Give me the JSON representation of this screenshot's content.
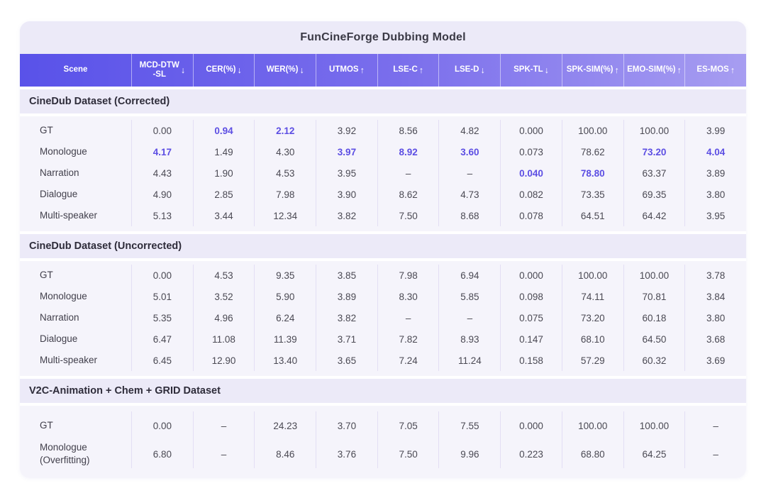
{
  "title": "FunCineForge Dubbing Model",
  "colors": {
    "accent_highlight": "#5C4EE3",
    "header_gradient_start": "#5952E9",
    "header_gradient_end": "#A79DF1",
    "card_background": "#ECEAF8",
    "data_background": "#F5F4FB"
  },
  "table": {
    "scene_header": "Scene",
    "columns": [
      {
        "label": "MCD-DTW\n-SL",
        "arrow": "↓",
        "better": "lower"
      },
      {
        "label": "CER(%)",
        "arrow": "↓",
        "better": "lower"
      },
      {
        "label": "WER(%)",
        "arrow": "↓",
        "better": "lower"
      },
      {
        "label": "UTMOS",
        "arrow": "↑",
        "better": "higher"
      },
      {
        "label": "LSE-C",
        "arrow": "↑",
        "better": "higher"
      },
      {
        "label": "LSE-D",
        "arrow": "↓",
        "better": "lower"
      },
      {
        "label": "SPK-TL",
        "arrow": "↓",
        "better": "lower"
      },
      {
        "label": "SPK-SIM(%)",
        "arrow": "↑",
        "better": "higher"
      },
      {
        "label": "EMO-SIM(%)",
        "arrow": "↑",
        "better": "higher"
      },
      {
        "label": "ES-MOS",
        "arrow": "↑",
        "better": "higher"
      }
    ],
    "sections": [
      {
        "title": "CineDub Dataset (Corrected)",
        "rows": [
          {
            "scene": "GT",
            "values": [
              "0.00",
              "0.94",
              "2.12",
              "3.92",
              "8.56",
              "4.82",
              "0.000",
              "100.00",
              "100.00",
              "3.99"
            ],
            "highlight": [
              1,
              2
            ]
          },
          {
            "scene": "Monologue",
            "values": [
              "4.17",
              "1.49",
              "4.30",
              "3.97",
              "8.92",
              "3.60",
              "0.073",
              "78.62",
              "73.20",
              "4.04"
            ],
            "highlight": [
              0,
              3,
              4,
              5,
              8,
              9
            ]
          },
          {
            "scene": "Narration",
            "values": [
              "4.43",
              "1.90",
              "4.53",
              "3.95",
              "–",
              "–",
              "0.040",
              "78.80",
              "63.37",
              "3.89"
            ],
            "highlight": [
              6,
              7
            ]
          },
          {
            "scene": "Dialogue",
            "values": [
              "4.90",
              "2.85",
              "7.98",
              "3.90",
              "8.62",
              "4.73",
              "0.082",
              "73.35",
              "69.35",
              "3.80"
            ],
            "highlight": []
          },
          {
            "scene": "Multi-speaker",
            "values": [
              "5.13",
              "3.44",
              "12.34",
              "3.82",
              "7.50",
              "8.68",
              "0.078",
              "64.51",
              "64.42",
              "3.95"
            ],
            "highlight": []
          }
        ]
      },
      {
        "title": "CineDub Dataset (Uncorrected)",
        "rows": [
          {
            "scene": "GT",
            "values": [
              "0.00",
              "4.53",
              "9.35",
              "3.85",
              "7.98",
              "6.94",
              "0.000",
              "100.00",
              "100.00",
              "3.78"
            ],
            "highlight": []
          },
          {
            "scene": "Monologue",
            "values": [
              "5.01",
              "3.52",
              "5.90",
              "3.89",
              "8.30",
              "5.85",
              "0.098",
              "74.11",
              "70.81",
              "3.84"
            ],
            "highlight": []
          },
          {
            "scene": "Narration",
            "values": [
              "5.35",
              "4.96",
              "6.24",
              "3.82",
              "–",
              "–",
              "0.075",
              "73.20",
              "60.18",
              "3.80"
            ],
            "highlight": []
          },
          {
            "scene": "Dialogue",
            "values": [
              "6.47",
              "11.08",
              "11.39",
              "3.71",
              "7.82",
              "8.93",
              "0.147",
              "68.10",
              "64.50",
              "3.68"
            ],
            "highlight": []
          },
          {
            "scene": "Multi-speaker",
            "values": [
              "6.45",
              "12.90",
              "13.40",
              "3.65",
              "7.24",
              "11.24",
              "0.158",
              "57.29",
              "60.32",
              "3.69"
            ],
            "highlight": []
          }
        ]
      },
      {
        "title": "V2C-Animation + Chem + GRID Dataset",
        "rows": [
          {
            "scene": "GT",
            "values": [
              "0.00",
              "–",
              "24.23",
              "3.70",
              "7.05",
              "7.55",
              "0.000",
              "100.00",
              "100.00",
              "–"
            ],
            "highlight": []
          },
          {
            "scene": "Monologue\n(Overfitting)",
            "values": [
              "6.80",
              "–",
              "8.46",
              "3.76",
              "7.50",
              "9.96",
              "0.223",
              "68.80",
              "64.25",
              "–"
            ],
            "highlight": []
          }
        ]
      }
    ]
  }
}
